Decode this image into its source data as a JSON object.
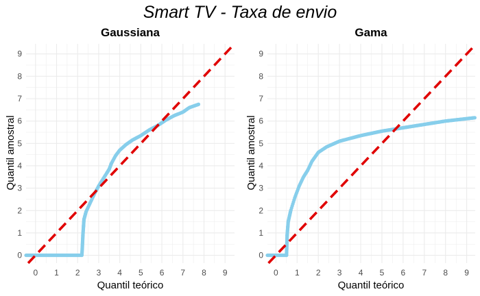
{
  "title": "Smart TV - Taxa de envio",
  "colors": {
    "points": "#87ceeb",
    "reference_line": "#e00000",
    "grid": "#ebebeb",
    "background": "#ffffff"
  },
  "chart_data": [
    {
      "type": "scatter",
      "title": "Gaussiana",
      "xlabel": "Quantil teórico",
      "ylabel": "Quantil amostral",
      "xlim": [
        -0.45,
        9.45
      ],
      "ylim": [
        -0.35,
        9.45
      ],
      "xticks": [
        0,
        1,
        2,
        3,
        4,
        5,
        6,
        7,
        8,
        9
      ],
      "yticks": [
        0,
        1,
        2,
        3,
        4,
        5,
        6,
        7,
        8,
        9
      ],
      "grid": true,
      "reference_line": {
        "style": "dashed",
        "slope": 1,
        "intercept": 0
      },
      "qq_curve": [
        [
          -0.45,
          0.0
        ],
        [
          2.2,
          0.0
        ],
        [
          2.22,
          0.3
        ],
        [
          2.25,
          0.9
        ],
        [
          2.3,
          1.6
        ],
        [
          2.4,
          1.95
        ],
        [
          2.6,
          2.35
        ],
        [
          2.8,
          2.75
        ],
        [
          3.0,
          3.1
        ],
        [
          3.2,
          3.4
        ],
        [
          3.4,
          3.7
        ],
        [
          3.5,
          3.85
        ],
        [
          3.6,
          4.1
        ],
        [
          3.8,
          4.45
        ],
        [
          4.0,
          4.7
        ],
        [
          4.3,
          4.95
        ],
        [
          4.6,
          5.15
        ],
        [
          5.0,
          5.35
        ],
        [
          5.4,
          5.6
        ],
        [
          5.8,
          5.8
        ],
        [
          6.2,
          6.05
        ],
        [
          6.6,
          6.25
        ],
        [
          7.0,
          6.4
        ],
        [
          7.3,
          6.6
        ],
        [
          7.75,
          6.75
        ]
      ]
    },
    {
      "type": "scatter",
      "title": "Gama",
      "xlabel": "Quantil teórico",
      "ylabel": "Quantil amostral",
      "xlim": [
        -0.4,
        9.4
      ],
      "ylim": [
        -0.35,
        9.45
      ],
      "xticks": [
        0,
        1,
        2,
        3,
        4,
        5,
        6,
        7,
        8,
        9
      ],
      "yticks": [
        0,
        1,
        2,
        3,
        4,
        5,
        6,
        7,
        8,
        9
      ],
      "grid": true,
      "reference_line": {
        "style": "dashed",
        "slope": 1,
        "intercept": 0
      },
      "qq_curve": [
        [
          -0.4,
          0.0
        ],
        [
          0.5,
          0.0
        ],
        [
          0.51,
          0.3
        ],
        [
          0.53,
          0.9
        ],
        [
          0.58,
          1.5
        ],
        [
          0.7,
          2.0
        ],
        [
          0.9,
          2.6
        ],
        [
          1.1,
          3.1
        ],
        [
          1.3,
          3.5
        ],
        [
          1.5,
          3.8
        ],
        [
          1.7,
          4.2
        ],
        [
          2.0,
          4.6
        ],
        [
          2.4,
          4.85
        ],
        [
          3.0,
          5.1
        ],
        [
          4.0,
          5.35
        ],
        [
          5.0,
          5.55
        ],
        [
          6.0,
          5.7
        ],
        [
          7.0,
          5.85
        ],
        [
          8.0,
          6.0
        ],
        [
          9.4,
          6.15
        ]
      ]
    }
  ]
}
